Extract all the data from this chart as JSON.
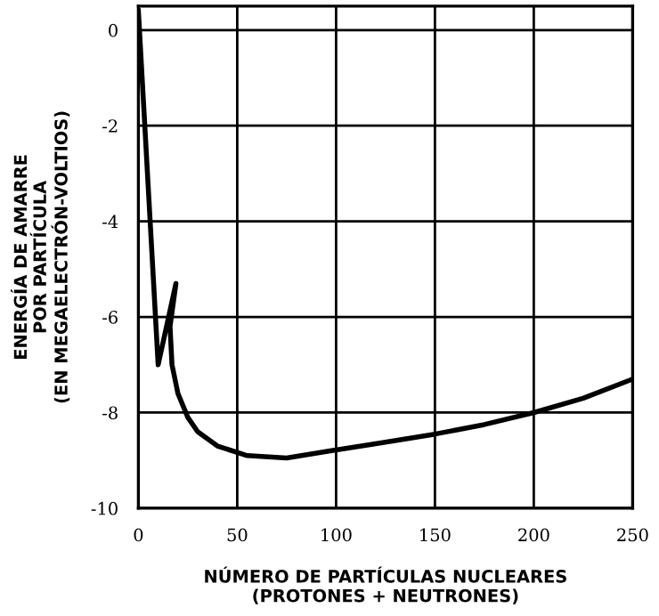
{
  "chart_data": {
    "type": "line",
    "xlabel": "NÚMERO DE PARTÍCULAS NUCLEARES\n(PROTONES + NEUTRONES)",
    "ylabel": "ENERGÍA DE AMARRE\nPOR PARTÍCULA\n(EN MEGAELECTRÓN-VOLTIOS)",
    "series": [
      {
        "color": "#000000",
        "x": [
          0,
          10,
          19,
          16,
          17,
          20,
          25,
          30,
          40,
          55,
          75,
          97,
          120,
          150,
          175,
          200,
          225,
          250
        ],
        "values": [
          0.4,
          -7.0,
          -5.3,
          -6.2,
          -7.0,
          -7.6,
          -8.1,
          -8.4,
          -8.7,
          -8.9,
          -8.95,
          -8.8,
          -8.65,
          -8.45,
          -8.25,
          -8.0,
          -7.7,
          -7.3
        ]
      }
    ],
    "xlim": [
      0,
      250
    ],
    "ylim": [
      -10,
      0.5
    ],
    "xticks": [
      0,
      50,
      100,
      150,
      200,
      250
    ],
    "yticks": [
      0,
      -2,
      -4,
      -6,
      -8,
      -10
    ],
    "grid": true,
    "marker": "none",
    "line_style": "solid"
  }
}
